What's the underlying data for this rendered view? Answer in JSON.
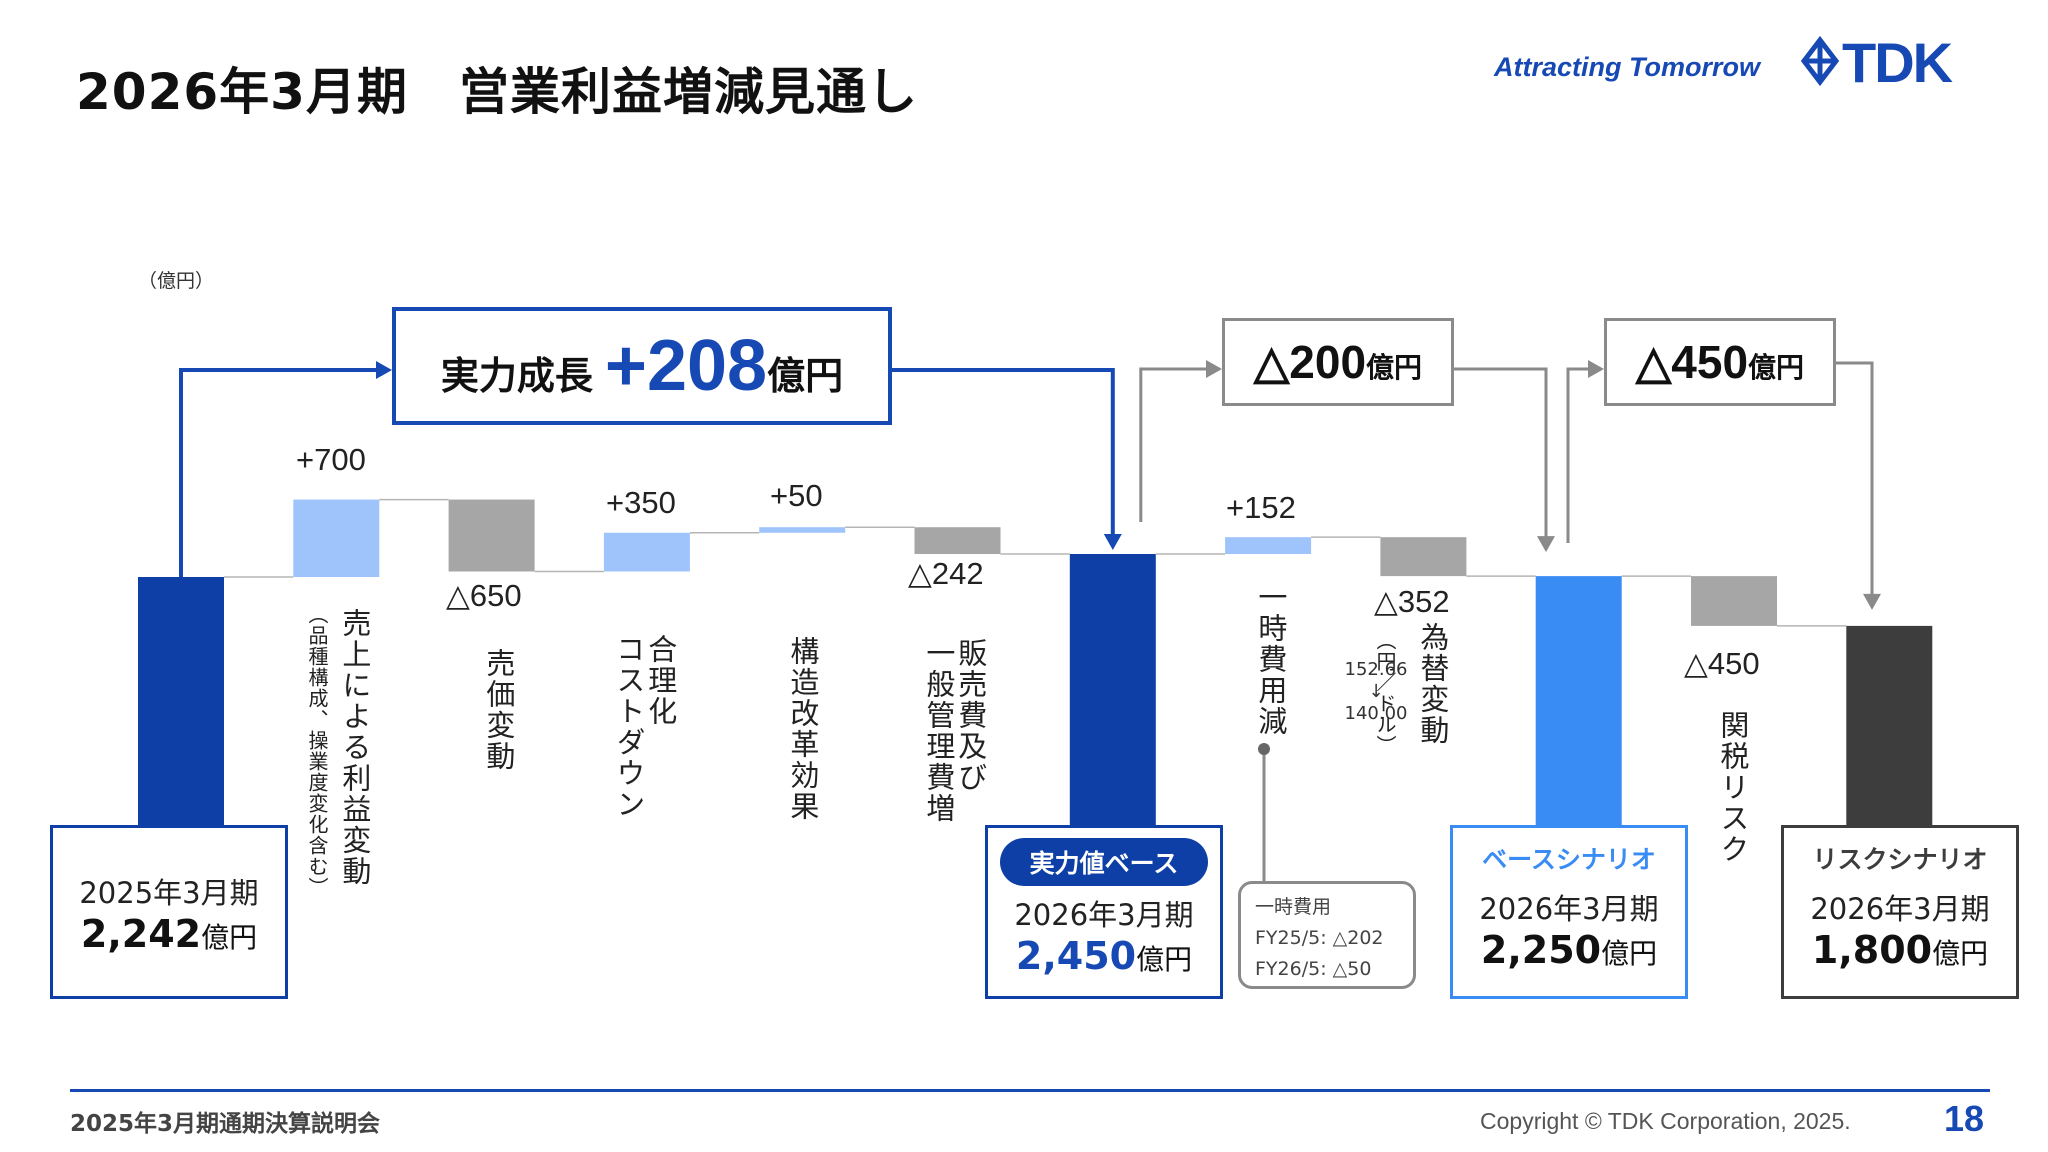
{
  "title": "2026年3月期　営業利益増減見通し",
  "brand": {
    "slogan": "Attracting Tomorrow",
    "logo_text": "TDK",
    "color": "#1749b5"
  },
  "unit": "（億円）",
  "chart_data": {
    "type": "bar",
    "subtype": "waterfall",
    "unit": "億円",
    "steps": [
      {
        "kind": "total",
        "label": "2025年3月期",
        "value": 2242,
        "value_text": "2,242",
        "color": "#0d3fa6"
      },
      {
        "kind": "delta",
        "label": "売上による利益変動",
        "sublabel": "（品種構成、操業度変化含む）",
        "value": 700,
        "delta_text": "+700",
        "color": "#9ec4fb"
      },
      {
        "kind": "delta",
        "label": "売価変動",
        "value": -650,
        "delta_text": "△650",
        "color": "#a6a6a6"
      },
      {
        "kind": "delta",
        "label": "合理化\nコストダウン",
        "value": 350,
        "delta_text": "+350",
        "color": "#9ec4fb"
      },
      {
        "kind": "delta",
        "label": "構造改革効果",
        "value": 50,
        "delta_text": "+50",
        "color": "#9ec4fb"
      },
      {
        "kind": "delta",
        "label": "販売費及び\n一般管理費増",
        "value": -242,
        "delta_text": "△242",
        "color": "#a6a6a6"
      },
      {
        "kind": "total",
        "label": "実力値ベース",
        "period": "2026年3月期",
        "value": 2450,
        "value_text": "2,450",
        "color": "#0d3fa6"
      },
      {
        "kind": "delta",
        "label": "一時費用減",
        "value": 152,
        "delta_text": "+152",
        "color": "#9ec4fb"
      },
      {
        "kind": "delta",
        "label": "為替変動",
        "sublabel": "（円／ドル）",
        "value": -352,
        "delta_text": "△352",
        "color": "#a6a6a6"
      },
      {
        "kind": "total",
        "label": "ベースシナリオ",
        "period": "2026年3月期",
        "value": 2250,
        "value_text": "2,250",
        "color": "#3a8cf5"
      },
      {
        "kind": "delta",
        "label": "関税リスク",
        "value": -450,
        "delta_text": "△450",
        "color": "#a6a6a6"
      },
      {
        "kind": "total",
        "label": "リスクシナリオ",
        "period": "2026年3月期",
        "value": 1800,
        "value_text": "1,800",
        "color": "#3d3d3d"
      }
    ],
    "fx_rate": {
      "from": "152.66",
      "arrow": "↓",
      "to": "140.00"
    },
    "callouts": [
      {
        "prefix": "実力成長",
        "value_text": "+208",
        "unit": "億円",
        "color": "#1749b5"
      },
      {
        "value_text": "△200",
        "unit": "億円",
        "color": "#8a8a8a"
      },
      {
        "value_text": "△450",
        "unit": "億円",
        "color": "#8a8a8a"
      }
    ],
    "onetime_note": {
      "title": "一時費用",
      "lines": [
        "FY25/5: △202",
        "FY26/5: △50"
      ]
    },
    "grid": false,
    "legend": "none"
  },
  "footer": {
    "left": "2025年3月期通期決算説明会",
    "copyright": "Copyright © TDK Corporation, 2025.",
    "page": "18"
  }
}
